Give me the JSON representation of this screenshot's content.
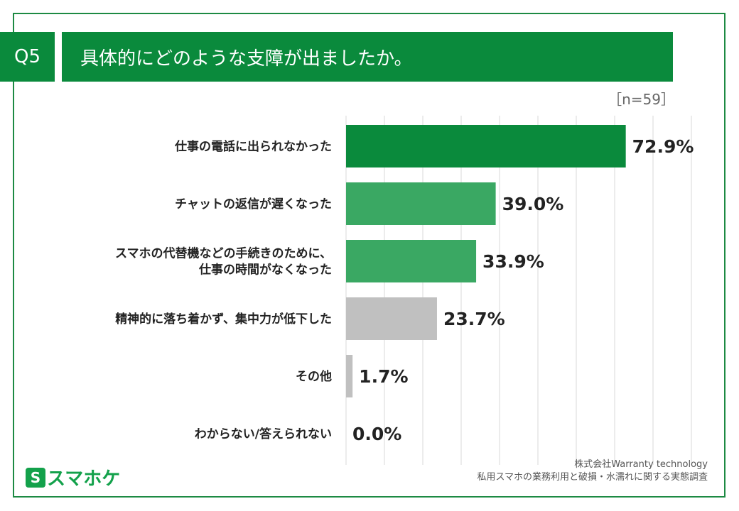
{
  "header": {
    "question": "Q5",
    "title": "具体的にどのような支障が出ましたか。",
    "sample": "［n=59］"
  },
  "colors": {
    "dark": "#0a8a3c",
    "mid": "#3aa863",
    "gray": "#c0c0c0",
    "grid": "#d9d9d9"
  },
  "chart_data": {
    "type": "bar",
    "orientation": "horizontal",
    "title": "具体的にどのような支障が出ましたか。",
    "unit": "%",
    "xlim": [
      0,
      100
    ],
    "grid": true,
    "categories": [
      [
        "仕事の電話に出られなかった"
      ],
      [
        "チャットの返信が遅くなった"
      ],
      [
        "スマホの代替機などの手続きのために、",
        "仕事の時間がなくなった"
      ],
      [
        "精神的に落ち着かず、集中力が低下した"
      ],
      [
        "その他"
      ],
      [
        "わからない/答えられない"
      ]
    ],
    "values": [
      72.9,
      39.0,
      33.9,
      23.7,
      1.7,
      0.0
    ],
    "labels": [
      "72.9%",
      "39.0%",
      "33.9%",
      "23.7%",
      "1.7%",
      "0.0%"
    ],
    "bar_colors": [
      "#0a8a3c",
      "#3aa863",
      "#3aa863",
      "#c0c0c0",
      "#c0c0c0",
      "#c0c0c0"
    ]
  },
  "footer": {
    "logo_mark": "S",
    "logo_text": "スマホケ",
    "source_line1": "株式会社Warranty technology",
    "source_line2": "私用スマホの業務利用と破損・水濡れに関する実態調査"
  }
}
